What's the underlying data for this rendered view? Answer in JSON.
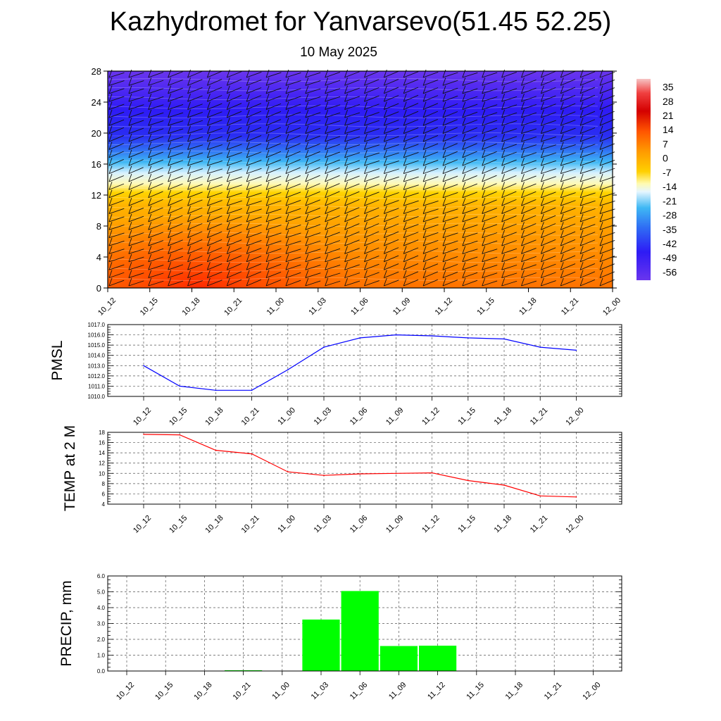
{
  "header": {
    "title": "Kazhydromet for Yanvarsevo(51.45 52.25)",
    "date": "10 May 2025"
  },
  "chart_data": [
    {
      "type": "heatmap",
      "description_scope": "temperature-height cross section with wind barbs",
      "x_ticks": [
        "10_12",
        "10_15",
        "10_18",
        "10_21",
        "11_00",
        "11_03",
        "11_06",
        "11_09",
        "11_12",
        "11_15",
        "11_18",
        "11_21",
        "12_00"
      ],
      "y_ticks": [
        "0",
        "4",
        "8",
        "12",
        "16",
        "20",
        "24",
        "28"
      ],
      "ylim": [
        0,
        28
      ],
      "colorbar_labels": [
        "35",
        "28",
        "21",
        "14",
        "7",
        "0",
        "-7",
        "-14",
        "-21",
        "-28",
        "-35",
        "-42",
        "-49",
        "-56"
      ],
      "colorbar_range": [
        -60,
        39
      ]
    },
    {
      "type": "line",
      "ylabel": "PMSL",
      "x": [
        "10_12",
        "10_15",
        "10_18",
        "10_21",
        "11_00",
        "11_03",
        "11_06",
        "11_09",
        "11_12",
        "11_15",
        "11_18",
        "11_21",
        "12_00"
      ],
      "values": [
        1013.0,
        1011.0,
        1010.6,
        1010.6,
        1012.6,
        1014.8,
        1015.7,
        1016.0,
        1015.9,
        1015.7,
        1015.6,
        1014.8,
        1014.5
      ],
      "y_ticks": [
        "1010.0",
        "1011.0",
        "1012.0",
        "1013.0",
        "1014.0",
        "1015.0",
        "1016.0",
        "1017.0"
      ],
      "ylim": [
        1010,
        1017
      ],
      "color": "#0000ff",
      "grid": true
    },
    {
      "type": "line",
      "ylabel": "TEMP at 2 M",
      "x": [
        "10_12",
        "10_15",
        "10_18",
        "10_21",
        "11_00",
        "11_03",
        "11_06",
        "11_09",
        "11_12",
        "11_15",
        "11_18",
        "11_21",
        "12_00"
      ],
      "values": [
        17.6,
        17.5,
        14.5,
        13.8,
        10.3,
        9.6,
        9.9,
        10.0,
        10.1,
        8.6,
        7.7,
        5.6,
        5.4
      ],
      "y_ticks": [
        "4",
        "6",
        "8",
        "10",
        "12",
        "14",
        "16",
        "18"
      ],
      "ylim": [
        4,
        18
      ],
      "color": "#ff0000",
      "grid": true
    },
    {
      "type": "bar",
      "ylabel": "PRECIP, mm",
      "categories": [
        "10_12",
        "10_15",
        "10_18",
        "10_21",
        "11_00",
        "11_03",
        "11_06",
        "11_09",
        "11_12",
        "11_15",
        "11_18",
        "11_21",
        "12_00"
      ],
      "values": [
        0,
        0,
        0,
        0.05,
        0,
        3.25,
        5.05,
        1.58,
        1.6,
        0,
        0,
        0,
        0
      ],
      "y_ticks": [
        "0.0",
        "1.0",
        "2.0",
        "3.0",
        "4.0",
        "5.0",
        "6.0"
      ],
      "ylim": [
        0,
        6
      ],
      "color": "#00ff00",
      "grid": true
    }
  ]
}
